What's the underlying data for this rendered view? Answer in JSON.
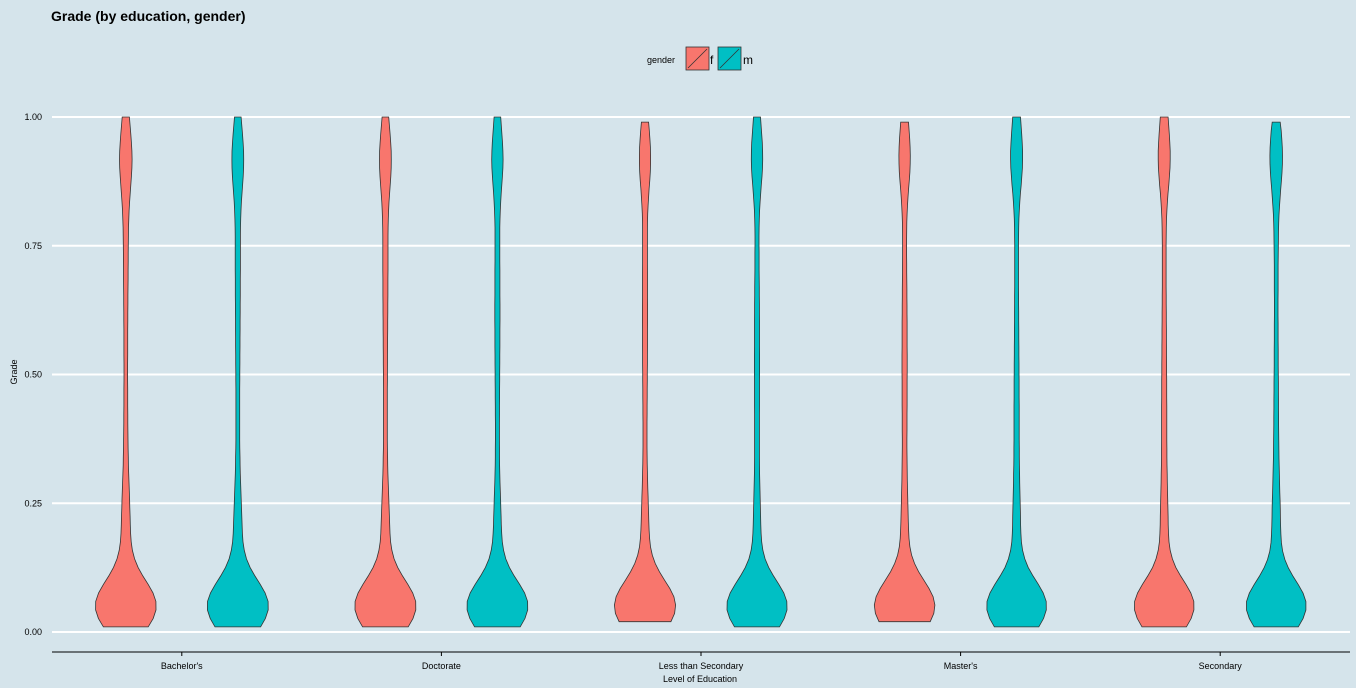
{
  "chart_data": {
    "type": "violin",
    "title": "Grade (by education, gender)",
    "xlabel": "Level of Education",
    "ylabel": "Grade",
    "categories": [
      "Bachelor's",
      "Doctorate",
      "Less than Secondary",
      "Master's",
      "Secondary"
    ],
    "ylim": [
      0,
      1
    ],
    "yticks": [
      "0.00",
      "0.25",
      "0.50",
      "0.75",
      "1.00"
    ],
    "grid": true,
    "legend": {
      "title": "gender",
      "placement": "top",
      "entries": [
        {
          "label": "f",
          "color": "#f8766d"
        },
        {
          "label": "m",
          "color": "#00bfc4"
        }
      ]
    },
    "series": [
      {
        "name": "f",
        "color": "#f8766d",
        "violins": [
          {
            "category": "Bachelor's",
            "min": 0.01,
            "max": 1.0
          },
          {
            "category": "Doctorate",
            "min": 0.01,
            "max": 1.0
          },
          {
            "category": "Less than Secondary",
            "min": 0.02,
            "max": 0.99
          },
          {
            "category": "Master's",
            "min": 0.02,
            "max": 0.99
          },
          {
            "category": "Secondary",
            "min": 0.01,
            "max": 1.0
          }
        ]
      },
      {
        "name": "m",
        "color": "#00bfc4",
        "violins": [
          {
            "category": "Bachelor's",
            "min": 0.01,
            "max": 1.0
          },
          {
            "category": "Doctorate",
            "min": 0.01,
            "max": 1.0
          },
          {
            "category": "Less than Secondary",
            "min": 0.01,
            "max": 1.0
          },
          {
            "category": "Master's",
            "min": 0.01,
            "max": 1.0
          },
          {
            "category": "Secondary",
            "min": 0.01,
            "max": 0.99
          }
        ]
      }
    ]
  }
}
